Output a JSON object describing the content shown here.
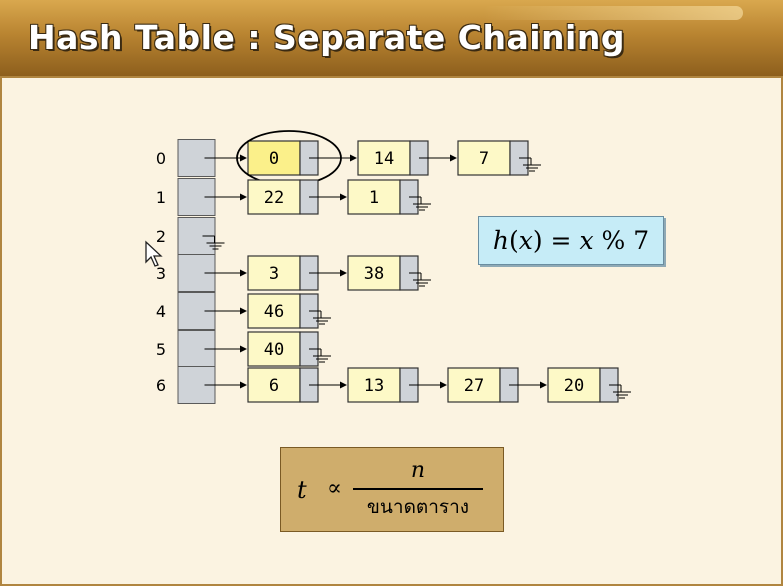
{
  "title": "Hash Table : Separate Chaining",
  "indices": [
    "0",
    "1",
    "2",
    "3",
    "4",
    "5",
    "6"
  ],
  "chains": [
    [
      "0",
      "14",
      "7"
    ],
    [
      "22",
      "1"
    ],
    [],
    [
      "3",
      "38"
    ],
    [
      "46"
    ],
    [
      "40"
    ],
    [
      "6",
      "13",
      "27",
      "20"
    ]
  ],
  "highlighted_node": {
    "row": 0,
    "position": 0,
    "value": "0"
  },
  "hash_formula": {
    "h": "h",
    "x": "x",
    "rest": " % 7",
    "text": "h(x) = x % 7"
  },
  "time_formula": {
    "lhs": "t",
    "relation": "∝",
    "numerator": "n",
    "denominator": "ขนาดตาราง"
  },
  "colors": {
    "node_fill": "#fdf9c7",
    "highlight_fill": "#fbf08a",
    "pointer_fill": "#cfd3d8",
    "title_gold": "#b98431",
    "formula_bg": "#c6ecf7",
    "time_bg": "#cfad6c"
  }
}
